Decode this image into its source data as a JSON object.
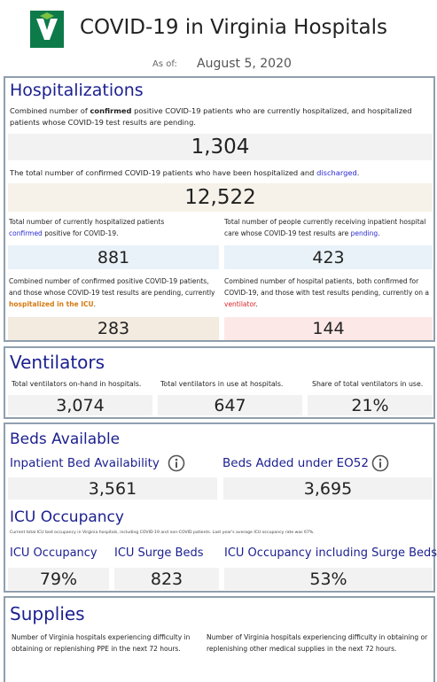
{
  "header": {
    "title": "COVID-19 in Virginia Hospitals",
    "as_of_label": "As of:",
    "date": "August 5, 2020"
  },
  "hospitalizations": {
    "title": "Hospitalizations",
    "current": {
      "text": [
        "Combined number of ",
        "confirmed",
        " positive COVID-19 patients who are currently hospitalized, and hospitalized patients whose COVID-19 test results are pending."
      ],
      "value": "1,304"
    },
    "discharged": {
      "text": [
        "The total number of confirmed COVID-19 patients who have been hospitalized and ",
        "discharged",
        "."
      ],
      "value": "12,522"
    },
    "confirmed": {
      "text": [
        "Total number of currently hospitalized patients ",
        "confirmed",
        " positive for COVID-19."
      ],
      "value": "881"
    },
    "pending": {
      "text": [
        "Total number of people currently receiving inpatient hospital care whose COVID-19 test results are ",
        "pending",
        "."
      ],
      "value": "423"
    },
    "icu": {
      "text": [
        "Combined number of confirmed positive COVID-19 patients, and those whose COVID-19 test results are pending, currently ",
        "hospitalized in the ICU",
        "."
      ],
      "value": "283"
    },
    "ventilator": {
      "text": [
        "Combined number of hospital patients, both confirmed for COVID-19, and those with test results pending, currently on a ",
        "ventilator",
        "."
      ],
      "value": "144"
    }
  },
  "ventilators": {
    "title": "Ventilators",
    "items": [
      {
        "label": "Total ventilators on-hand in hospitals.",
        "value": "3,074"
      },
      {
        "label": "Total ventilators in use at hospitals.",
        "value": "647"
      },
      {
        "label": "Share of total ventilators in use.",
        "value": "21%"
      }
    ]
  },
  "beds": {
    "title": "Beds Available",
    "items": [
      {
        "label": "Inpatient Bed Availability",
        "value": "3,561"
      },
      {
        "label": "Beds Added under EO52",
        "value": "3,695"
      }
    ]
  },
  "icu_occupancy": {
    "title": "ICU Occupancy",
    "note": "Current total ICU bed occupancy in Virginia hospitals, including COVID-19 and non-COVID patients. Last year's average ICU occupancy rate was 67%.",
    "items": [
      {
        "label": "ICU Occupancy",
        "value": "79%"
      },
      {
        "label": "ICU Surge Beds",
        "value": "823"
      },
      {
        "label": "ICU Occupancy including Surge Beds",
        "value": "53%"
      }
    ]
  },
  "supplies": {
    "title": "Supplies",
    "items": [
      {
        "label": "Number of Virginia hospitals experiencing difficulty in obtaining or replenishing PPE in the next 72 hours."
      },
      {
        "label": "Number of Virginia hospitals experiencing difficulty in obtaining or replenishing other medical supplies in the next 72 hours."
      }
    ]
  }
}
